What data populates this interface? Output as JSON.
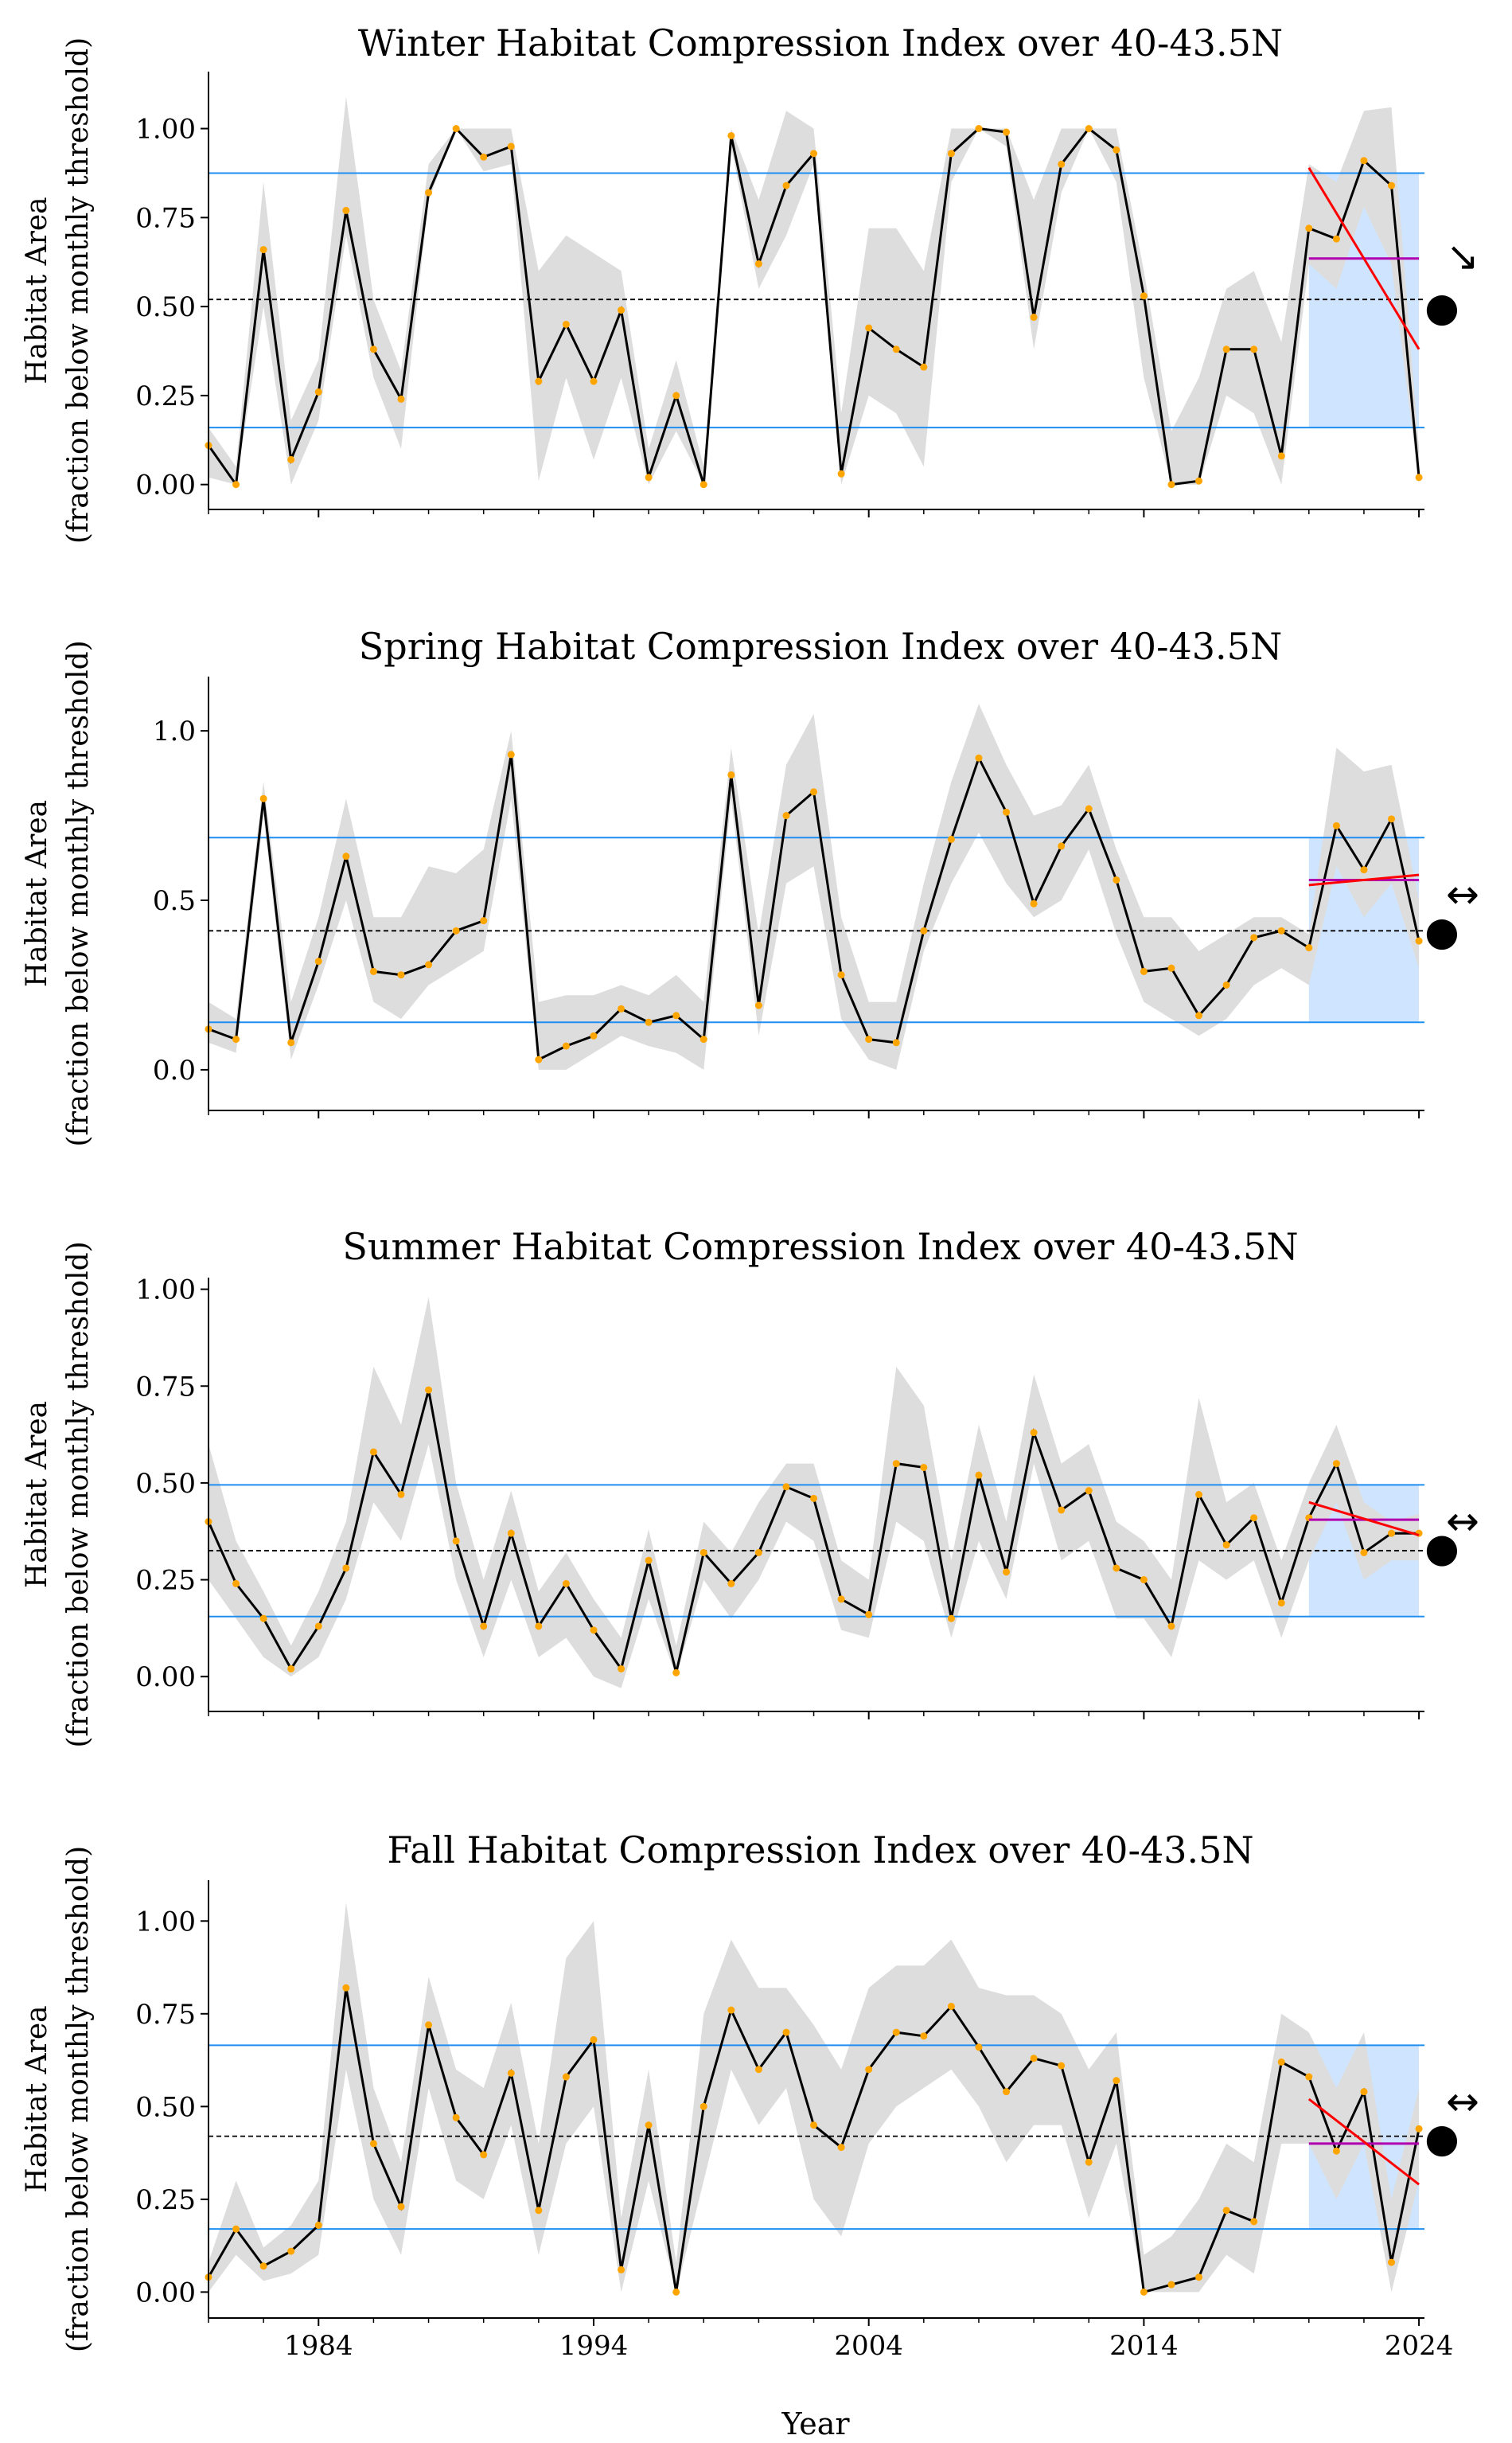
{
  "chart_data": [
    {
      "type": "line",
      "title": "Winter Habitat Compression Index over 40-43.5N",
      "ylabel": [
        "Habitat Area",
        "(fraction below monthly threshold)"
      ],
      "ylim": [
        -0.07,
        1.16
      ],
      "yticks": [
        "0.00",
        "0.25",
        "0.50",
        "0.75",
        "1.00"
      ],
      "ytick_values": [
        0,
        0.25,
        0.5,
        0.75,
        1.0
      ],
      "mean": 0.52,
      "upper_sd": 0.875,
      "lower_sd": 0.16,
      "trend_symbol": "↘",
      "mean_symbol": "●",
      "trend_line": [
        0.89,
        0.38
      ],
      "recent_mean": 0.635,
      "x": [
        1980,
        1981,
        1982,
        1983,
        1984,
        1985,
        1986,
        1987,
        1988,
        1989,
        1990,
        1991,
        1992,
        1993,
        1994,
        1995,
        1996,
        1997,
        1998,
        1999,
        2000,
        2001,
        2002,
        2003,
        2004,
        2005,
        2006,
        2007,
        2008,
        2009,
        2010,
        2011,
        2012,
        2013,
        2014,
        2015,
        2016,
        2017,
        2018,
        2019,
        2020,
        2021,
        2022,
        2023,
        2024
      ],
      "y": [
        0.11,
        0.0,
        0.66,
        0.07,
        0.26,
        0.77,
        0.38,
        0.24,
        0.82,
        1.0,
        0.92,
        0.95,
        0.29,
        0.45,
        0.29,
        0.49,
        0.02,
        0.25,
        0.0,
        0.98,
        0.62,
        0.84,
        0.93,
        0.03,
        0.44,
        0.38,
        0.33,
        0.93,
        1.0,
        0.99,
        0.47,
        0.9,
        1.0,
        0.94,
        0.53,
        0.0,
        0.01,
        0.38,
        0.38,
        0.08,
        0.72,
        0.69,
        0.91,
        0.84,
        0.02
      ],
      "y_upper": [
        0.16,
        0.05,
        0.85,
        0.18,
        0.35,
        1.09,
        0.52,
        0.32,
        0.9,
        1.0,
        1.0,
        1.0,
        0.6,
        0.7,
        0.65,
        0.6,
        0.1,
        0.35,
        0.05,
        1.0,
        0.8,
        1.05,
        1.0,
        0.2,
        0.72,
        0.72,
        0.6,
        1.0,
        1.0,
        1.0,
        0.8,
        1.0,
        1.0,
        1.0,
        0.6,
        0.15,
        0.3,
        0.55,
        0.6,
        0.4,
        0.9,
        0.85,
        1.05,
        1.06,
        0.1
      ],
      "y_lower": [
        0.02,
        0.0,
        0.5,
        0.0,
        0.18,
        0.7,
        0.3,
        0.1,
        0.8,
        1.0,
        0.88,
        0.9,
        0.01,
        0.3,
        0.07,
        0.3,
        0.0,
        0.15,
        0.0,
        0.95,
        0.55,
        0.7,
        0.9,
        0.0,
        0.25,
        0.2,
        0.05,
        0.85,
        1.0,
        0.95,
        0.38,
        0.82,
        1.0,
        0.85,
        0.3,
        0.0,
        0.0,
        0.25,
        0.2,
        0.0,
        0.62,
        0.55,
        0.78,
        0.62,
        0.0
      ]
    },
    {
      "type": "line",
      "title": "Spring Habitat Compression Index over 40-43.5N",
      "ylabel": [
        "Habitat Area",
        "(fraction below monthly threshold)"
      ],
      "ylim": [
        -0.12,
        1.16
      ],
      "yticks": [
        "0.0",
        "0.5",
        "1.0"
      ],
      "ytick_values": [
        0,
        0.5,
        1.0
      ],
      "mean": 0.41,
      "upper_sd": 0.685,
      "lower_sd": 0.14,
      "trend_symbol": "↔",
      "mean_symbol": "●",
      "trend_line": [
        0.545,
        0.575
      ],
      "recent_mean": 0.56,
      "x": [
        1980,
        1981,
        1982,
        1983,
        1984,
        1985,
        1986,
        1987,
        1988,
        1989,
        1990,
        1991,
        1992,
        1993,
        1994,
        1995,
        1996,
        1997,
        1998,
        1999,
        2000,
        2001,
        2002,
        2003,
        2004,
        2005,
        2006,
        2007,
        2008,
        2009,
        2010,
        2011,
        2012,
        2013,
        2014,
        2015,
        2016,
        2017,
        2018,
        2019,
        2020,
        2021,
        2022,
        2023,
        2024
      ],
      "y": [
        0.12,
        0.09,
        0.8,
        0.08,
        0.32,
        0.63,
        0.29,
        0.28,
        0.31,
        0.41,
        0.44,
        0.93,
        0.03,
        0.07,
        0.1,
        0.18,
        0.14,
        0.16,
        0.09,
        0.87,
        0.19,
        0.75,
        0.82,
        0.28,
        0.09,
        0.08,
        0.41,
        0.68,
        0.92,
        0.76,
        0.49,
        0.66,
        0.77,
        0.56,
        0.29,
        0.3,
        0.16,
        0.25,
        0.39,
        0.41,
        0.36,
        0.72,
        0.59,
        0.74,
        0.38
      ],
      "y_upper": [
        0.2,
        0.15,
        0.85,
        0.2,
        0.45,
        0.8,
        0.45,
        0.45,
        0.6,
        0.58,
        0.65,
        1.0,
        0.2,
        0.22,
        0.22,
        0.25,
        0.22,
        0.28,
        0.2,
        0.95,
        0.4,
        0.9,
        1.05,
        0.45,
        0.2,
        0.2,
        0.55,
        0.85,
        1.08,
        0.9,
        0.75,
        0.78,
        0.9,
        0.65,
        0.45,
        0.45,
        0.35,
        0.4,
        0.45,
        0.45,
        0.4,
        0.95,
        0.88,
        0.9,
        0.5
      ],
      "y_lower": [
        0.08,
        0.05,
        0.75,
        0.03,
        0.25,
        0.5,
        0.2,
        0.15,
        0.25,
        0.3,
        0.35,
        0.8,
        0.0,
        0.0,
        0.05,
        0.1,
        0.07,
        0.05,
        0.0,
        0.8,
        0.1,
        0.55,
        0.6,
        0.15,
        0.03,
        0.0,
        0.35,
        0.55,
        0.7,
        0.55,
        0.45,
        0.5,
        0.65,
        0.4,
        0.2,
        0.15,
        0.1,
        0.15,
        0.25,
        0.3,
        0.25,
        0.6,
        0.45,
        0.55,
        0.3
      ]
    },
    {
      "type": "line",
      "title": "Summer Habitat Compression Index over 40-43.5N",
      "ylabel": [
        "Habitat Area",
        "(fraction below monthly threshold)"
      ],
      "ylim": [
        -0.09,
        1.03
      ],
      "yticks": [
        "0.00",
        "0.25",
        "0.50",
        "0.75",
        "1.00"
      ],
      "ytick_values": [
        0,
        0.25,
        0.5,
        0.75,
        1.0
      ],
      "mean": 0.325,
      "upper_sd": 0.495,
      "lower_sd": 0.155,
      "trend_symbol": "↔",
      "mean_symbol": "●",
      "trend_line": [
        0.45,
        0.365
      ],
      "recent_mean": 0.405,
      "x": [
        1980,
        1981,
        1982,
        1983,
        1984,
        1985,
        1986,
        1987,
        1988,
        1989,
        1990,
        1991,
        1992,
        1993,
        1994,
        1995,
        1996,
        1997,
        1998,
        1999,
        2000,
        2001,
        2002,
        2003,
        2004,
        2005,
        2006,
        2007,
        2008,
        2009,
        2010,
        2011,
        2012,
        2013,
        2014,
        2015,
        2016,
        2017,
        2018,
        2019,
        2020,
        2021,
        2022,
        2023,
        2024
      ],
      "y": [
        0.4,
        0.24,
        0.15,
        0.02,
        0.13,
        0.28,
        0.58,
        0.47,
        0.74,
        0.35,
        0.13,
        0.37,
        0.13,
        0.24,
        0.12,
        0.02,
        0.3,
        0.01,
        0.32,
        0.24,
        0.32,
        0.49,
        0.46,
        0.2,
        0.16,
        0.55,
        0.54,
        0.15,
        0.52,
        0.27,
        0.63,
        0.43,
        0.48,
        0.28,
        0.25,
        0.13,
        0.47,
        0.34,
        0.41,
        0.19,
        0.41,
        0.55,
        0.32,
        0.37,
        0.37
      ],
      "y_upper": [
        0.6,
        0.35,
        0.22,
        0.08,
        0.22,
        0.4,
        0.8,
        0.65,
        0.98,
        0.5,
        0.25,
        0.48,
        0.22,
        0.32,
        0.2,
        0.1,
        0.38,
        0.08,
        0.4,
        0.32,
        0.45,
        0.55,
        0.55,
        0.3,
        0.25,
        0.8,
        0.7,
        0.3,
        0.65,
        0.4,
        0.78,
        0.55,
        0.6,
        0.4,
        0.35,
        0.25,
        0.72,
        0.45,
        0.5,
        0.3,
        0.5,
        0.65,
        0.45,
        0.4,
        0.42
      ],
      "y_lower": [
        0.25,
        0.15,
        0.05,
        0.0,
        0.05,
        0.2,
        0.45,
        0.35,
        0.6,
        0.25,
        0.05,
        0.25,
        0.05,
        0.1,
        0.0,
        -0.03,
        0.2,
        0.0,
        0.25,
        0.15,
        0.25,
        0.4,
        0.35,
        0.12,
        0.1,
        0.4,
        0.35,
        0.1,
        0.35,
        0.2,
        0.55,
        0.3,
        0.35,
        0.15,
        0.15,
        0.05,
        0.3,
        0.25,
        0.3,
        0.1,
        0.3,
        0.45,
        0.25,
        0.3,
        0.3
      ]
    },
    {
      "type": "line",
      "title": "Fall Habitat Compression Index over 40-43.5N",
      "ylabel": [
        "Habitat Area",
        "(fraction below monthly threshold)"
      ],
      "ylim": [
        -0.07,
        1.11
      ],
      "yticks": [
        "0.00",
        "0.25",
        "0.50",
        "0.75",
        "1.00"
      ],
      "ytick_values": [
        0,
        0.25,
        0.5,
        0.75,
        1.0
      ],
      "mean": 0.42,
      "upper_sd": 0.665,
      "lower_sd": 0.17,
      "trend_symbol": "↔",
      "mean_symbol": "●",
      "trend_line": [
        0.52,
        0.29
      ],
      "recent_mean": 0.4,
      "x": [
        1980,
        1981,
        1982,
        1983,
        1984,
        1985,
        1986,
        1987,
        1988,
        1989,
        1990,
        1991,
        1992,
        1993,
        1994,
        1995,
        1996,
        1997,
        1998,
        1999,
        2000,
        2001,
        2002,
        2003,
        2004,
        2005,
        2006,
        2007,
        2008,
        2009,
        2010,
        2011,
        2012,
        2013,
        2014,
        2015,
        2016,
        2017,
        2018,
        2019,
        2020,
        2021,
        2022,
        2023,
        2024
      ],
      "y": [
        0.04,
        0.17,
        0.07,
        0.11,
        0.18,
        0.82,
        0.4,
        0.23,
        0.72,
        0.47,
        0.37,
        0.59,
        0.22,
        0.58,
        0.68,
        0.06,
        0.45,
        0.0,
        0.5,
        0.76,
        0.6,
        0.7,
        0.45,
        0.39,
        0.6,
        0.7,
        0.69,
        0.77,
        0.66,
        0.54,
        0.63,
        0.61,
        0.35,
        0.57,
        0.0,
        0.02,
        0.04,
        0.22,
        0.19,
        0.62,
        0.58,
        0.38,
        0.54,
        0.08,
        0.44
      ],
      "y_upper": [
        0.08,
        0.3,
        0.12,
        0.18,
        0.3,
        1.05,
        0.55,
        0.35,
        0.85,
        0.6,
        0.55,
        0.78,
        0.4,
        0.9,
        1.0,
        0.2,
        0.6,
        0.08,
        0.75,
        0.95,
        0.82,
        0.82,
        0.72,
        0.6,
        0.82,
        0.88,
        0.88,
        0.95,
        0.82,
        0.8,
        0.8,
        0.75,
        0.6,
        0.7,
        0.1,
        0.15,
        0.25,
        0.4,
        0.35,
        0.75,
        0.7,
        0.55,
        0.7,
        0.25,
        0.55
      ],
      "y_lower": [
        0.0,
        0.1,
        0.03,
        0.05,
        0.1,
        0.6,
        0.25,
        0.1,
        0.55,
        0.3,
        0.25,
        0.45,
        0.1,
        0.4,
        0.5,
        0.0,
        0.3,
        0.0,
        0.3,
        0.6,
        0.45,
        0.55,
        0.25,
        0.15,
        0.4,
        0.5,
        0.55,
        0.6,
        0.5,
        0.35,
        0.45,
        0.45,
        0.2,
        0.4,
        0.0,
        0.0,
        0.0,
        0.1,
        0.05,
        0.4,
        0.4,
        0.25,
        0.4,
        0.0,
        0.3
      ]
    }
  ],
  "x_axis": {
    "label": "Year",
    "tick_values": [
      1984,
      1994,
      2004,
      2014,
      2024
    ],
    "tick_labels": [
      "1984",
      "1994",
      "2004",
      "2014",
      "2024"
    ],
    "xlim": [
      1980,
      2024.2
    ]
  },
  "colors": {
    "line": "#000000",
    "points": "#ffa500",
    "band": "#dddddd",
    "sd_lines": "#1f8ef1",
    "mean_line": "#000000",
    "recent_shade": "#cfe5ff",
    "trend": "#ff0000",
    "recent_mean": "#b000b0"
  },
  "recent_window_start": 2020
}
